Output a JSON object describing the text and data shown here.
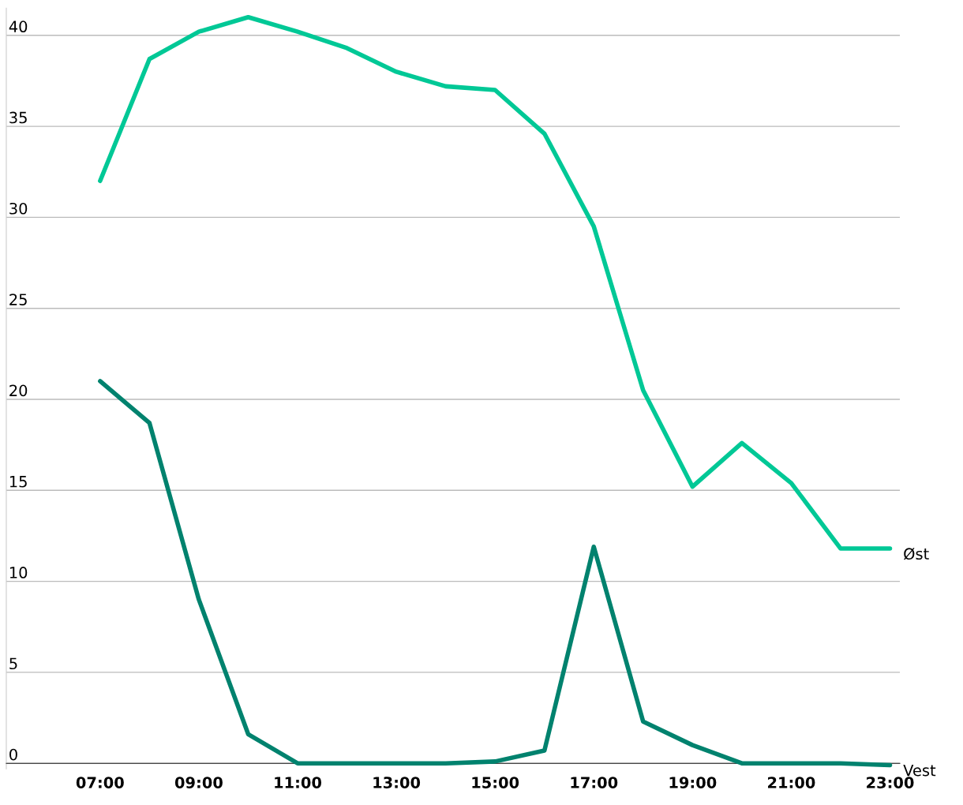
{
  "chart_data": {
    "type": "line",
    "x": [
      7,
      8,
      9,
      10,
      11,
      12,
      13,
      14,
      15,
      16,
      17,
      18,
      19,
      20,
      21,
      22,
      23
    ],
    "series": [
      {
        "name": "Øst",
        "color": "#00c896",
        "values": [
          32,
          38.7,
          40.2,
          41.0,
          40.2,
          39.3,
          38.0,
          37.2,
          37.0,
          34.6,
          29.5,
          20.5,
          15.2,
          17.6,
          15.4,
          11.8,
          11.8
        ]
      },
      {
        "name": "Vest",
        "color": "#00826e",
        "values": [
          21.0,
          18.7,
          9.0,
          1.6,
          0,
          0,
          0,
          0,
          0.1,
          0.7,
          11.9,
          2.3,
          1.0,
          0,
          0,
          0,
          -0.1
        ]
      }
    ],
    "xlim": [
      5.1,
      23.2
    ],
    "xticks": [
      {
        "value": 7,
        "label": "07:00"
      },
      {
        "value": 9,
        "label": "09:00"
      },
      {
        "value": 11,
        "label": "11:00"
      },
      {
        "value": 13,
        "label": "13:00"
      },
      {
        "value": 15,
        "label": "15:00"
      },
      {
        "value": 17,
        "label": "17:00"
      },
      {
        "value": 19,
        "label": "19:00"
      },
      {
        "value": 21,
        "label": "21:00"
      },
      {
        "value": 23,
        "label": "23:00"
      }
    ],
    "ylim": [
      -0.3,
      41.5
    ],
    "yticks": [
      0,
      5,
      10,
      15,
      20,
      25,
      30,
      35,
      40
    ],
    "grid": "y",
    "legend": false,
    "marker": "none",
    "line_style": "solid"
  }
}
